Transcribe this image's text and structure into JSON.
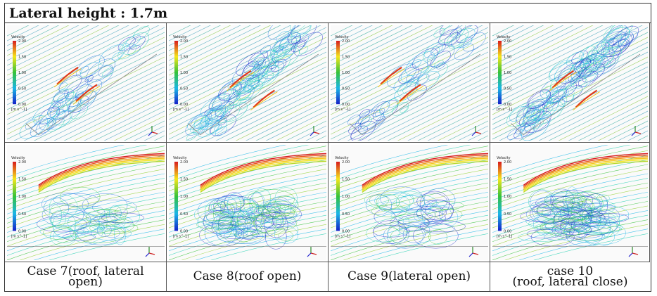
{
  "title": "Lateral height : 1.7m",
  "legend": {
    "label": "Velocity",
    "ticks": [
      "2.00",
      "1.50",
      "1.00",
      "0.50",
      "0.00"
    ],
    "unit": "[m s^-1]",
    "colors": [
      "#d7191c",
      "#f4e61b",
      "#35c23a",
      "#1ab6e6",
      "#1520c8"
    ]
  },
  "cases": [
    {
      "caption": "Case 7(roof, lateral\nopen)"
    },
    {
      "caption": "Case 8(roof open)"
    },
    {
      "caption": "Case 9(lateral open)"
    },
    {
      "caption": "case 10\n(roof, lateral close)"
    }
  ]
}
